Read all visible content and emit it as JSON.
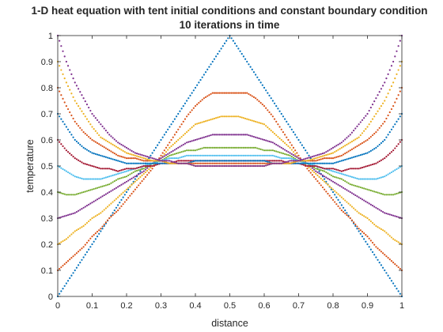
{
  "chart_data": {
    "type": "scatter",
    "title": "1-D heat equation with tent initial conditions and constant boundary condition",
    "subtitle": "10 iterations in time",
    "xlabel": "distance",
    "ylabel": "temperature",
    "xlim": [
      0,
      1
    ],
    "ylim": [
      0,
      1
    ],
    "xticks": [
      "0",
      "0.1",
      "0.2",
      "0.3",
      "0.4",
      "0.5",
      "0.6",
      "0.7",
      "0.8",
      "0.9",
      "1"
    ],
    "yticks": [
      "0",
      "0.1",
      "0.2",
      "0.3",
      "0.4",
      "0.5",
      "0.6",
      "0.7",
      "0.8",
      "0.9",
      "1"
    ],
    "grid": false,
    "legend": false,
    "x": [
      0,
      0.025,
      0.05,
      0.075,
      0.1,
      0.125,
      0.15,
      0.175,
      0.2,
      0.225,
      0.25,
      0.275,
      0.3,
      0.325,
      0.35,
      0.375,
      0.4,
      0.425,
      0.45,
      0.475,
      0.5,
      0.525,
      0.55,
      0.575,
      0.6,
      0.625,
      0.65,
      0.675,
      0.7,
      0.725,
      0.75,
      0.775,
      0.8,
      0.825,
      0.85,
      0.875,
      0.9,
      0.925,
      0.95,
      0.975,
      1
    ],
    "series": [
      {
        "color": "#0072BD",
        "values": [
          0,
          0.05,
          0.1,
          0.15,
          0.2,
          0.25,
          0.3,
          0.35,
          0.4,
          0.45,
          0.5,
          0.55,
          0.6,
          0.65,
          0.7,
          0.75,
          0.8,
          0.85,
          0.9,
          0.95,
          1,
          0.95,
          0.9,
          0.85,
          0.8,
          0.75,
          0.7,
          0.65,
          0.6,
          0.55,
          0.5,
          0.45,
          0.4,
          0.35,
          0.3,
          0.25,
          0.2,
          0.15,
          0.1,
          0.05,
          0
        ]
      },
      {
        "color": "#D95319",
        "values": [
          0.1,
          0.13,
          0.16,
          0.19,
          0.23,
          0.26,
          0.3,
          0.33,
          0.37,
          0.41,
          0.45,
          0.49,
          0.54,
          0.59,
          0.64,
          0.69,
          0.73,
          0.76,
          0.78,
          0.78,
          0.78,
          0.78,
          0.78,
          0.76,
          0.73,
          0.69,
          0.64,
          0.59,
          0.54,
          0.49,
          0.45,
          0.41,
          0.37,
          0.33,
          0.3,
          0.26,
          0.23,
          0.19,
          0.16,
          0.13,
          0.1
        ]
      },
      {
        "color": "#EDB120",
        "values": [
          0.2,
          0.22,
          0.25,
          0.27,
          0.3,
          0.32,
          0.35,
          0.38,
          0.41,
          0.44,
          0.47,
          0.5,
          0.53,
          0.57,
          0.6,
          0.63,
          0.66,
          0.67,
          0.68,
          0.69,
          0.69,
          0.69,
          0.68,
          0.67,
          0.66,
          0.63,
          0.6,
          0.57,
          0.53,
          0.5,
          0.47,
          0.44,
          0.41,
          0.38,
          0.35,
          0.32,
          0.3,
          0.27,
          0.25,
          0.22,
          0.2
        ]
      },
      {
        "color": "#7E2F8E",
        "values": [
          0.3,
          0.31,
          0.32,
          0.34,
          0.36,
          0.38,
          0.4,
          0.42,
          0.44,
          0.46,
          0.48,
          0.51,
          0.53,
          0.55,
          0.57,
          0.59,
          0.6,
          0.61,
          0.62,
          0.62,
          0.62,
          0.62,
          0.62,
          0.61,
          0.6,
          0.59,
          0.57,
          0.55,
          0.53,
          0.51,
          0.48,
          0.46,
          0.44,
          0.42,
          0.4,
          0.38,
          0.36,
          0.34,
          0.32,
          0.31,
          0.3
        ]
      },
      {
        "color": "#77AC30",
        "values": [
          0.4,
          0.39,
          0.39,
          0.4,
          0.41,
          0.42,
          0.43,
          0.45,
          0.46,
          0.48,
          0.49,
          0.51,
          0.52,
          0.54,
          0.55,
          0.56,
          0.56,
          0.57,
          0.57,
          0.57,
          0.57,
          0.57,
          0.57,
          0.57,
          0.56,
          0.56,
          0.55,
          0.54,
          0.52,
          0.51,
          0.49,
          0.48,
          0.46,
          0.45,
          0.43,
          0.42,
          0.41,
          0.4,
          0.39,
          0.39,
          0.4
        ]
      },
      {
        "color": "#4DBEEE",
        "values": [
          0.5,
          0.48,
          0.46,
          0.45,
          0.45,
          0.45,
          0.46,
          0.47,
          0.48,
          0.49,
          0.5,
          0.51,
          0.52,
          0.53,
          0.53,
          0.54,
          0.54,
          0.54,
          0.54,
          0.54,
          0.54,
          0.54,
          0.54,
          0.54,
          0.54,
          0.54,
          0.53,
          0.53,
          0.52,
          0.51,
          0.5,
          0.49,
          0.48,
          0.47,
          0.46,
          0.45,
          0.45,
          0.45,
          0.46,
          0.48,
          0.5
        ]
      },
      {
        "color": "#A2142F",
        "values": [
          0.6,
          0.56,
          0.53,
          0.51,
          0.5,
          0.49,
          0.49,
          0.48,
          0.49,
          0.49,
          0.5,
          0.5,
          0.51,
          0.51,
          0.52,
          0.52,
          0.52,
          0.52,
          0.52,
          0.52,
          0.52,
          0.52,
          0.52,
          0.52,
          0.52,
          0.52,
          0.52,
          0.51,
          0.51,
          0.5,
          0.5,
          0.49,
          0.49,
          0.48,
          0.49,
          0.49,
          0.5,
          0.51,
          0.53,
          0.56,
          0.6
        ]
      },
      {
        "color": "#0072BD",
        "values": [
          0.7,
          0.65,
          0.6,
          0.57,
          0.55,
          0.54,
          0.53,
          0.52,
          0.51,
          0.51,
          0.51,
          0.51,
          0.51,
          0.51,
          0.51,
          0.51,
          0.52,
          0.52,
          0.52,
          0.52,
          0.52,
          0.52,
          0.52,
          0.52,
          0.52,
          0.51,
          0.51,
          0.51,
          0.51,
          0.51,
          0.51,
          0.51,
          0.51,
          0.52,
          0.53,
          0.54,
          0.55,
          0.57,
          0.6,
          0.65,
          0.7
        ]
      },
      {
        "color": "#D95319",
        "values": [
          0.8,
          0.73,
          0.67,
          0.63,
          0.6,
          0.58,
          0.56,
          0.54,
          0.53,
          0.53,
          0.52,
          0.52,
          0.52,
          0.51,
          0.51,
          0.51,
          0.51,
          0.51,
          0.51,
          0.51,
          0.51,
          0.51,
          0.51,
          0.51,
          0.51,
          0.51,
          0.51,
          0.51,
          0.52,
          0.52,
          0.52,
          0.53,
          0.53,
          0.54,
          0.56,
          0.58,
          0.6,
          0.63,
          0.67,
          0.73,
          0.8
        ]
      },
      {
        "color": "#EDB120",
        "values": [
          0.9,
          0.82,
          0.75,
          0.7,
          0.65,
          0.61,
          0.59,
          0.57,
          0.55,
          0.54,
          0.53,
          0.52,
          0.52,
          0.51,
          0.51,
          0.51,
          0.5,
          0.5,
          0.5,
          0.5,
          0.5,
          0.5,
          0.5,
          0.5,
          0.5,
          0.51,
          0.51,
          0.51,
          0.52,
          0.52,
          0.53,
          0.54,
          0.55,
          0.57,
          0.59,
          0.61,
          0.65,
          0.7,
          0.75,
          0.82,
          0.9
        ]
      },
      {
        "color": "#7E2F8E",
        "values": [
          1,
          0.9,
          0.82,
          0.76,
          0.7,
          0.66,
          0.62,
          0.59,
          0.57,
          0.55,
          0.54,
          0.53,
          0.52,
          0.52,
          0.51,
          0.51,
          0.5,
          0.5,
          0.5,
          0.5,
          0.5,
          0.5,
          0.5,
          0.5,
          0.5,
          0.51,
          0.51,
          0.52,
          0.52,
          0.53,
          0.54,
          0.55,
          0.57,
          0.59,
          0.62,
          0.66,
          0.7,
          0.76,
          0.82,
          0.9,
          1
        ]
      }
    ]
  }
}
